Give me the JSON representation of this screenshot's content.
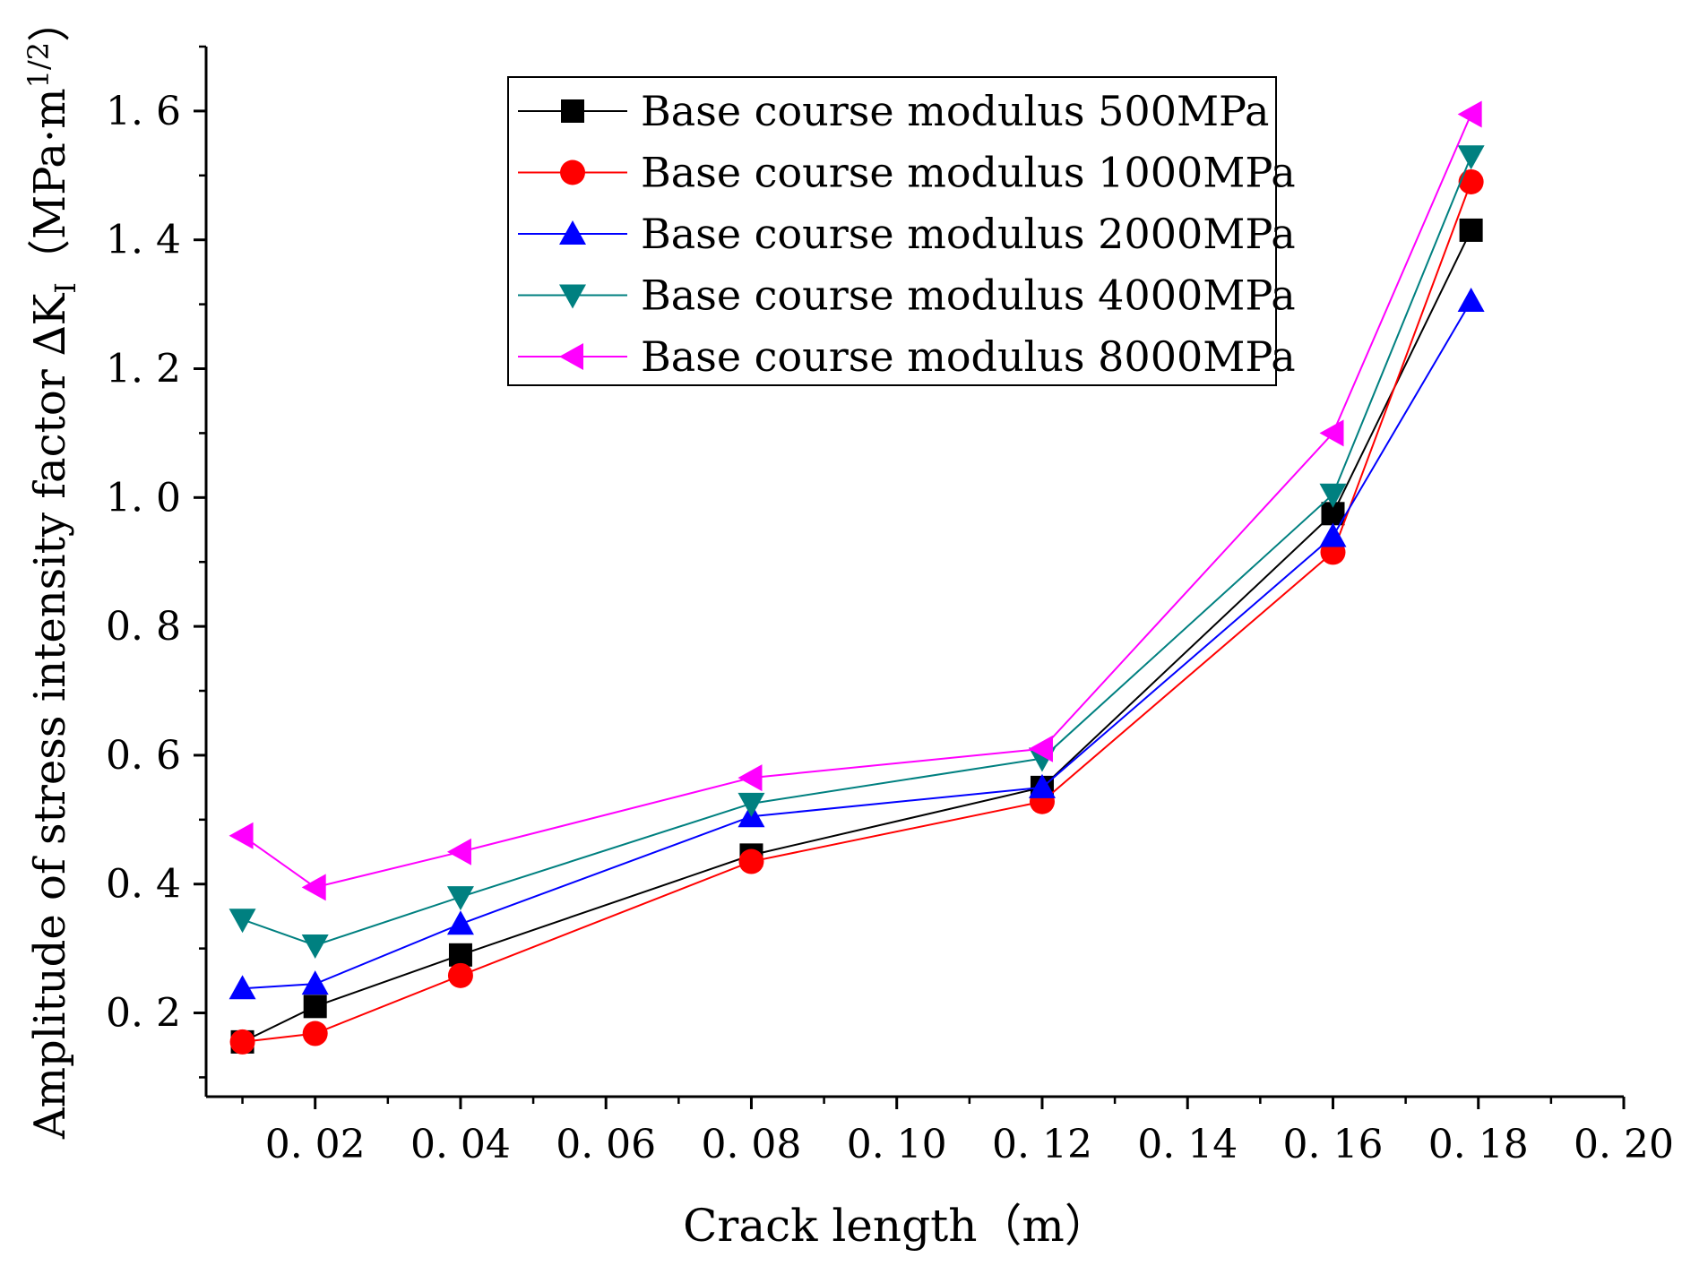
{
  "chart_data": {
    "type": "line",
    "title": "",
    "xlabel": "Crack length（m）",
    "ylabel": "Amplitude of stress intensity factor ∆K",
    "ylabel_sub": "I",
    "ylabel_unit_open": "（MPa·m",
    "ylabel_unit_sup": "1/2",
    "ylabel_unit_close": "）",
    "xlim": [
      0.005,
      0.2
    ],
    "ylim": [
      0.07,
      1.7
    ],
    "x_ticks": [
      0.02,
      0.04,
      0.06,
      0.08,
      0.1,
      0.12,
      0.14,
      0.16,
      0.18,
      0.2
    ],
    "x_tick_labels": [
      "0. 02",
      "0. 04",
      "0. 06",
      "0. 08",
      "0. 10",
      "0. 12",
      "0. 14",
      "0. 16",
      "0. 18",
      "0. 20"
    ],
    "x_minor_ticks": [
      0.01,
      0.03,
      0.05,
      0.07,
      0.09,
      0.11,
      0.13,
      0.15,
      0.17,
      0.19
    ],
    "y_ticks": [
      0.2,
      0.4,
      0.6,
      0.8,
      1.0,
      1.2,
      1.4,
      1.6
    ],
    "y_tick_labels": [
      "0. 2",
      "0. 4",
      "0. 6",
      "0. 8",
      "1. 0",
      "1. 2",
      "1. 4",
      "1. 6"
    ],
    "y_minor_ticks": [
      0.1,
      0.3,
      0.5,
      0.7,
      0.9,
      1.1,
      1.3,
      1.5,
      1.7
    ],
    "grid": false,
    "legend_position": "top-center",
    "x": [
      0.01,
      0.02,
      0.04,
      0.08,
      0.12,
      0.16,
      0.179
    ],
    "series": [
      {
        "name": "Base course modulus 500MPa",
        "color": "#000000",
        "marker": "square",
        "values": [
          0.155,
          0.21,
          0.29,
          0.445,
          0.55,
          0.975,
          1.415
        ]
      },
      {
        "name": "Base course modulus 1000MPa",
        "color": "#ff0000",
        "marker": "circle",
        "values": [
          0.155,
          0.168,
          0.258,
          0.435,
          0.528,
          0.915,
          1.49
        ]
      },
      {
        "name": "Base course modulus 2000MPa",
        "color": "#0000ff",
        "marker": "triangle-up",
        "values": [
          0.238,
          0.245,
          0.338,
          0.505,
          0.55,
          0.94,
          1.305
        ]
      },
      {
        "name": "Base course modulus 4000MPa",
        "color": "#008080",
        "marker": "triangle-down",
        "values": [
          0.345,
          0.305,
          0.38,
          0.525,
          0.595,
          1.005,
          1.53
        ]
      },
      {
        "name": "Base course modulus 8000MPa",
        "color": "#ff00ff",
        "marker": "triangle-left",
        "values": [
          0.475,
          0.395,
          0.45,
          0.565,
          0.61,
          1.1,
          1.595
        ]
      }
    ]
  }
}
